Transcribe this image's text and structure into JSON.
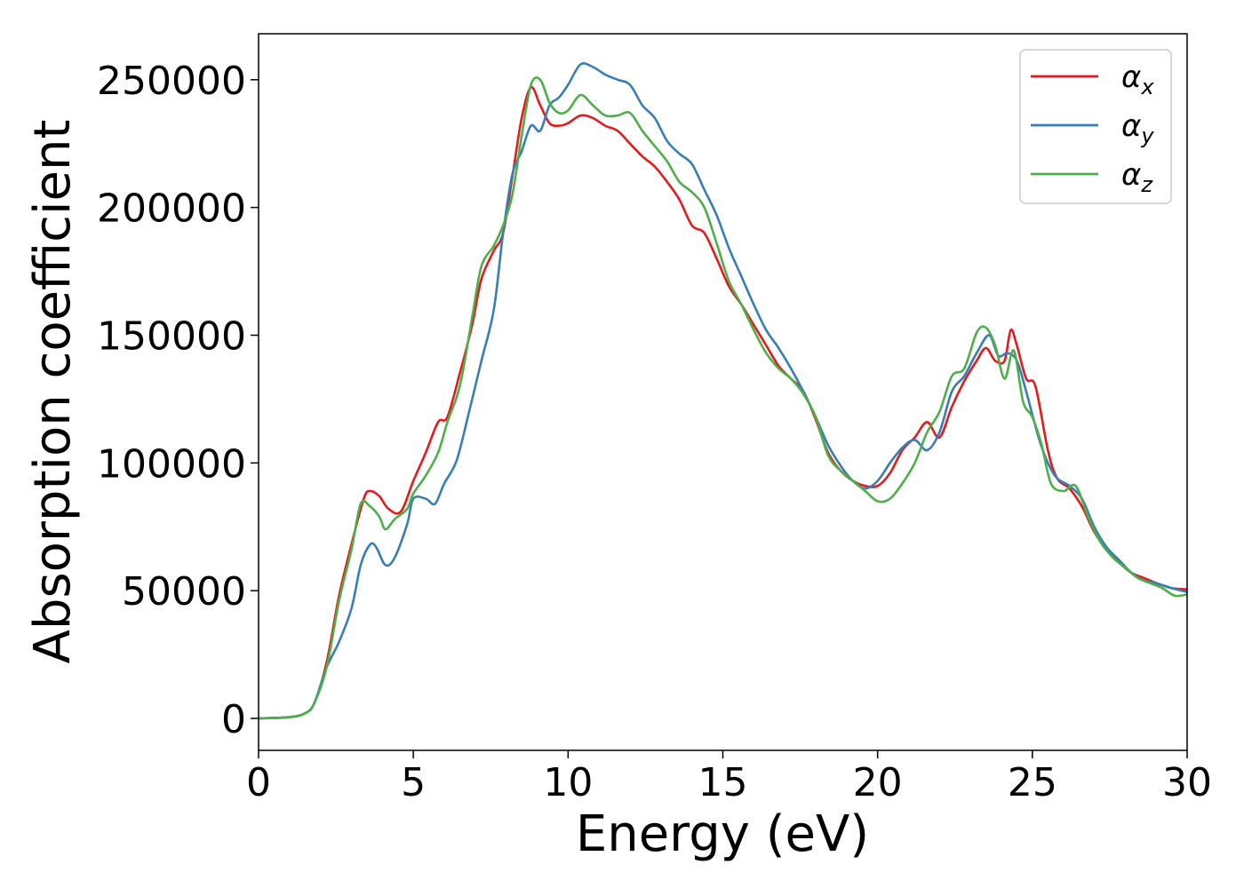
{
  "chart_data": {
    "type": "line",
    "xlabel": "Energy (eV)",
    "ylabel": "Absorption coefficient",
    "xlim": [
      0,
      30
    ],
    "ylim": [
      -12500,
      268000
    ],
    "xticks": [
      "0",
      "5",
      "10",
      "15",
      "20",
      "25",
      "30"
    ],
    "yticks": [
      "0",
      "50000",
      "100000",
      "150000",
      "200000",
      "250000"
    ],
    "grid": false,
    "legend_position": "top-right",
    "series": [
      {
        "name": "α",
        "subscript": "x",
        "color": "#e41a1c",
        "points": [
          [
            0,
            0
          ],
          [
            1,
            500
          ],
          [
            1.5,
            2000
          ],
          [
            1.8,
            6000
          ],
          [
            2.2,
            22000
          ],
          [
            2.6,
            48000
          ],
          [
            3,
            68000
          ],
          [
            3.4,
            86000
          ],
          [
            3.6,
            89000
          ],
          [
            3.9,
            87000
          ],
          [
            4.2,
            82000
          ],
          [
            4.6,
            81000
          ],
          [
            5,
            93000
          ],
          [
            5.4,
            104000
          ],
          [
            5.8,
            116000
          ],
          [
            6.1,
            118000
          ],
          [
            6.5,
            135000
          ],
          [
            6.9,
            154000
          ],
          [
            7.2,
            172000
          ],
          [
            7.6,
            183000
          ],
          [
            7.9,
            190000
          ],
          [
            8.2,
            212000
          ],
          [
            8.5,
            235000
          ],
          [
            8.8,
            247000
          ],
          [
            9.1,
            240000
          ],
          [
            9.4,
            233000
          ],
          [
            9.7,
            232000
          ],
          [
            10,
            233000
          ],
          [
            10.4,
            236000
          ],
          [
            10.8,
            235000
          ],
          [
            11.2,
            232000
          ],
          [
            11.6,
            230000
          ],
          [
            12,
            225000
          ],
          [
            12.4,
            220000
          ],
          [
            12.8,
            216000
          ],
          [
            13.2,
            210000
          ],
          [
            13.6,
            203000
          ],
          [
            14,
            193000
          ],
          [
            14.4,
            190000
          ],
          [
            14.8,
            180000
          ],
          [
            15.2,
            169000
          ],
          [
            15.6,
            162000
          ],
          [
            16,
            154000
          ],
          [
            16.4,
            146000
          ],
          [
            16.8,
            138000
          ],
          [
            17.2,
            133000
          ],
          [
            17.6,
            128000
          ],
          [
            18,
            117000
          ],
          [
            18.4,
            104000
          ],
          [
            18.8,
            97000
          ],
          [
            19.2,
            93000
          ],
          [
            19.6,
            91000
          ],
          [
            20,
            91000
          ],
          [
            20.4,
            96000
          ],
          [
            20.8,
            105000
          ],
          [
            21.2,
            110000
          ],
          [
            21.6,
            116000
          ],
          [
            22,
            110000
          ],
          [
            22.4,
            122000
          ],
          [
            22.8,
            132000
          ],
          [
            23.2,
            140000
          ],
          [
            23.5,
            145000
          ],
          [
            23.8,
            140000
          ],
          [
            24.1,
            140000
          ],
          [
            24.3,
            152000
          ],
          [
            24.5,
            146000
          ],
          [
            24.8,
            133000
          ],
          [
            25.1,
            130000
          ],
          [
            25.5,
            105000
          ],
          [
            25.8,
            94000
          ],
          [
            26.2,
            90000
          ],
          [
            26.6,
            83000
          ],
          [
            27,
            73000
          ],
          [
            27.4,
            66000
          ],
          [
            27.8,
            61000
          ],
          [
            28.2,
            57000
          ],
          [
            28.6,
            55000
          ],
          [
            29,
            53000
          ],
          [
            29.5,
            51000
          ],
          [
            30,
            50500
          ]
        ]
      },
      {
        "name": "α",
        "subscript": "y",
        "color": "#377eb8",
        "points": [
          [
            0,
            0
          ],
          [
            1,
            500
          ],
          [
            1.5,
            2000
          ],
          [
            1.8,
            6000
          ],
          [
            2.2,
            20000
          ],
          [
            2.6,
            30000
          ],
          [
            3,
            43000
          ],
          [
            3.3,
            60000
          ],
          [
            3.6,
            68000
          ],
          [
            3.8,
            67000
          ],
          [
            4.1,
            60000
          ],
          [
            4.4,
            63000
          ],
          [
            4.8,
            76000
          ],
          [
            5,
            86000
          ],
          [
            5.4,
            86000
          ],
          [
            5.7,
            84000
          ],
          [
            6,
            92000
          ],
          [
            6.4,
            101000
          ],
          [
            6.8,
            120000
          ],
          [
            7.2,
            140000
          ],
          [
            7.6,
            160000
          ],
          [
            7.9,
            190000
          ],
          [
            8.2,
            213000
          ],
          [
            8.5,
            222000
          ],
          [
            8.8,
            232000
          ],
          [
            9.1,
            230000
          ],
          [
            9.4,
            240000
          ],
          [
            9.7,
            243000
          ],
          [
            10,
            248000
          ],
          [
            10.4,
            256000
          ],
          [
            10.8,
            255000
          ],
          [
            11.2,
            252000
          ],
          [
            11.6,
            250000
          ],
          [
            12,
            248000
          ],
          [
            12.4,
            240000
          ],
          [
            12.8,
            235000
          ],
          [
            13.2,
            226000
          ],
          [
            13.6,
            221000
          ],
          [
            14,
            217000
          ],
          [
            14.4,
            207000
          ],
          [
            14.8,
            197000
          ],
          [
            15.2,
            184000
          ],
          [
            15.6,
            173000
          ],
          [
            16,
            162000
          ],
          [
            16.4,
            152000
          ],
          [
            16.8,
            145000
          ],
          [
            17.2,
            137000
          ],
          [
            17.6,
            128000
          ],
          [
            18,
            118000
          ],
          [
            18.4,
            107000
          ],
          [
            18.8,
            99000
          ],
          [
            19.2,
            93000
          ],
          [
            19.6,
            90000
          ],
          [
            20,
            93000
          ],
          [
            20.4,
            100000
          ],
          [
            20.8,
            106000
          ],
          [
            21.2,
            109000
          ],
          [
            21.6,
            105000
          ],
          [
            22,
            112000
          ],
          [
            22.4,
            128000
          ],
          [
            22.8,
            134000
          ],
          [
            23.2,
            143000
          ],
          [
            23.6,
            150000
          ],
          [
            23.9,
            142000
          ],
          [
            24.2,
            143000
          ],
          [
            24.5,
            140000
          ],
          [
            24.8,
            128000
          ],
          [
            25.2,
            110000
          ],
          [
            25.5,
            100000
          ],
          [
            25.8,
            94000
          ],
          [
            26.2,
            91000
          ],
          [
            26.6,
            86000
          ],
          [
            27,
            75000
          ],
          [
            27.4,
            67000
          ],
          [
            27.8,
            62000
          ],
          [
            28.2,
            57000
          ],
          [
            28.6,
            54000
          ],
          [
            29,
            53000
          ],
          [
            29.5,
            51000
          ],
          [
            30,
            49500
          ]
        ]
      },
      {
        "name": "α",
        "subscript": "z",
        "color": "#4daf4a",
        "points": [
          [
            0,
            0
          ],
          [
            1,
            500
          ],
          [
            1.5,
            2000
          ],
          [
            1.8,
            6000
          ],
          [
            2.2,
            20000
          ],
          [
            2.6,
            46000
          ],
          [
            3,
            66000
          ],
          [
            3.3,
            84000
          ],
          [
            3.6,
            83000
          ],
          [
            3.9,
            79000
          ],
          [
            4.1,
            74000
          ],
          [
            4.4,
            78000
          ],
          [
            4.8,
            82000
          ],
          [
            5,
            88000
          ],
          [
            5.4,
            95000
          ],
          [
            5.8,
            104000
          ],
          [
            6.1,
            116000
          ],
          [
            6.5,
            130000
          ],
          [
            6.9,
            157000
          ],
          [
            7.2,
            177000
          ],
          [
            7.6,
            185000
          ],
          [
            7.9,
            193000
          ],
          [
            8.2,
            205000
          ],
          [
            8.5,
            228000
          ],
          [
            8.8,
            248000
          ],
          [
            9.1,
            250000
          ],
          [
            9.4,
            241000
          ],
          [
            9.7,
            237000
          ],
          [
            10,
            238000
          ],
          [
            10.4,
            244000
          ],
          [
            10.8,
            240000
          ],
          [
            11.2,
            236000
          ],
          [
            11.6,
            236000
          ],
          [
            12,
            237000
          ],
          [
            12.4,
            230000
          ],
          [
            12.8,
            224000
          ],
          [
            13.2,
            218000
          ],
          [
            13.6,
            210000
          ],
          [
            14,
            206000
          ],
          [
            14.4,
            200000
          ],
          [
            14.8,
            186000
          ],
          [
            15.2,
            171000
          ],
          [
            15.6,
            162000
          ],
          [
            16,
            152000
          ],
          [
            16.4,
            143000
          ],
          [
            16.8,
            137000
          ],
          [
            17.2,
            133000
          ],
          [
            17.6,
            127000
          ],
          [
            18,
            118000
          ],
          [
            18.4,
            103000
          ],
          [
            18.8,
            97000
          ],
          [
            19.2,
            93000
          ],
          [
            19.6,
            89000
          ],
          [
            20,
            85000
          ],
          [
            20.4,
            86000
          ],
          [
            20.8,
            92000
          ],
          [
            21.2,
            100000
          ],
          [
            21.6,
            112000
          ],
          [
            22,
            120000
          ],
          [
            22.4,
            134000
          ],
          [
            22.8,
            137000
          ],
          [
            23.2,
            151000
          ],
          [
            23.5,
            153000
          ],
          [
            23.8,
            146000
          ],
          [
            24.1,
            133000
          ],
          [
            24.4,
            144000
          ],
          [
            24.7,
            124000
          ],
          [
            25,
            118000
          ],
          [
            25.3,
            107000
          ],
          [
            25.6,
            92000
          ],
          [
            26,
            89000
          ],
          [
            26.4,
            91000
          ],
          [
            26.8,
            79000
          ],
          [
            27.2,
            69000
          ],
          [
            27.6,
            63000
          ],
          [
            28,
            59000
          ],
          [
            28.4,
            55000
          ],
          [
            28.8,
            53000
          ],
          [
            29.2,
            51000
          ],
          [
            29.6,
            48000
          ],
          [
            30,
            48500
          ]
        ]
      }
    ]
  }
}
